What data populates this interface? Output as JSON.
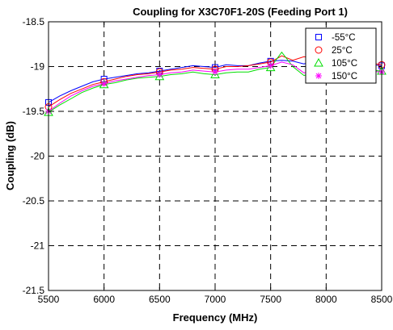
{
  "chart_data": {
    "type": "line",
    "title": "Coupling for X3C70F1-20S (Feeding Port 1)",
    "xlabel": "Frequency (MHz)",
    "ylabel": "Coupling (dB)",
    "xlim": [
      5500,
      8500
    ],
    "ylim": [
      -21.5,
      -18.5
    ],
    "xticks": [
      5500,
      6000,
      6500,
      7000,
      7500,
      8000,
      8500
    ],
    "yticks": [
      -18.5,
      -19,
      -19.5,
      -20,
      -20.5,
      -21,
      -21.5
    ],
    "xtick_labels": [
      "5500",
      "6000",
      "6500",
      "7000",
      "7500",
      "8000",
      "8500"
    ],
    "ytick_labels": [
      "-18.5",
      "-19",
      "-19.5",
      "-20",
      "-20.5",
      "-21",
      "-21.5"
    ],
    "grid": true,
    "grid_style": "dashed",
    "legend_position": "top-right",
    "x": [
      5500,
      5600,
      5700,
      5800,
      5900,
      6000,
      6100,
      6200,
      6300,
      6400,
      6500,
      6600,
      6700,
      6800,
      6900,
      7000,
      7100,
      7200,
      7300,
      7400,
      7500,
      7600,
      7700,
      7800,
      7900,
      8000,
      8100,
      8200,
      8300,
      8400,
      8500
    ],
    "series": [
      {
        "name": "-55°C",
        "color": "#0000ff",
        "marker": "square",
        "values": [
          -19.4,
          -19.33,
          -19.27,
          -19.22,
          -19.17,
          -19.14,
          -19.12,
          -19.1,
          -19.08,
          -19.07,
          -19.05,
          -19.03,
          -19.01,
          -18.99,
          -19.0,
          -19.01,
          -18.98,
          -18.99,
          -18.99,
          -18.96,
          -18.94,
          -18.93,
          -18.94,
          -18.97,
          -18.93,
          -18.92,
          -18.95,
          -18.97,
          -18.96,
          -18.98,
          -18.99
        ]
      },
      {
        "name": "25°C",
        "color": "#ff0000",
        "marker": "circle",
        "values": [
          -19.45,
          -19.37,
          -19.3,
          -19.25,
          -19.2,
          -19.17,
          -19.14,
          -19.11,
          -19.09,
          -19.08,
          -19.06,
          -19.04,
          -19.03,
          -19.01,
          -19.02,
          -19.03,
          -19.0,
          -19.0,
          -18.99,
          -18.97,
          -18.95,
          -18.88,
          -18.93,
          -18.89,
          -18.91,
          -18.91,
          -18.93,
          -18.95,
          -18.95,
          -18.96,
          -18.98
        ]
      },
      {
        "name": "105°C",
        "color": "#00dd00",
        "marker": "triangle",
        "values": [
          -19.51,
          -19.43,
          -19.36,
          -19.29,
          -19.24,
          -19.2,
          -19.18,
          -19.15,
          -19.13,
          -19.12,
          -19.11,
          -19.09,
          -19.08,
          -19.06,
          -19.08,
          -19.09,
          -19.07,
          -19.06,
          -19.06,
          -19.03,
          -19.01,
          -18.84,
          -19.0,
          -19.1,
          -19.06,
          -19.04,
          -19.02,
          -19.02,
          -19.03,
          -19.04,
          -19.05
        ]
      },
      {
        "name": "150°C",
        "color": "#ff00ff",
        "marker": "star",
        "values": [
          -19.5,
          -19.41,
          -19.33,
          -19.27,
          -19.22,
          -19.19,
          -19.16,
          -19.14,
          -19.12,
          -19.1,
          -19.09,
          -19.07,
          -19.06,
          -19.04,
          -19.05,
          -19.06,
          -19.04,
          -19.03,
          -19.03,
          -19.01,
          -18.99,
          -18.95,
          -18.98,
          -19.07,
          -19.05,
          -19.03,
          -19.03,
          -19.04,
          -19.04,
          -19.05,
          -19.06
        ]
      }
    ]
  }
}
